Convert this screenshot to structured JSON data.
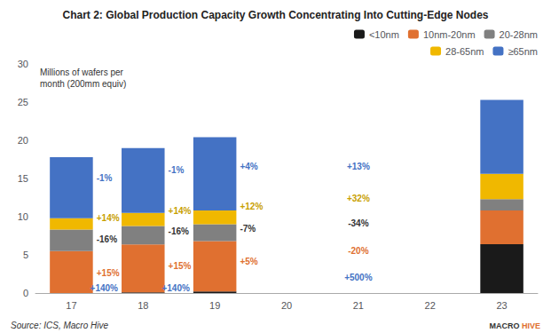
{
  "chart_data": {
    "type": "bar",
    "title": "Chart 2: Global Production Capacity Growth Concentrating Into Cutting-Edge Nodes",
    "ylabel": "Millions of wafers per\nmonth (200mm equiv)",
    "source": "Source: ICS, Macro Hive",
    "logo": [
      {
        "text": "MACRO",
        "color": "#333333"
      },
      {
        "text": "HIVE",
        "color": "#e07030"
      }
    ],
    "categories": [
      17,
      18,
      19,
      20,
      21,
      22,
      23
    ],
    "stacked": true,
    "series": [
      {
        "name": "<10nm",
        "color": "#1a1a1a",
        "values": [
          0.0,
          0.08,
          0.2,
          0.0,
          0.0,
          0.0,
          6.4
        ]
      },
      {
        "name": "10nm-20nm",
        "color": "#e07030",
        "values": [
          5.5,
          6.3,
          6.6,
          0.0,
          0.0,
          0.0,
          4.4
        ]
      },
      {
        "name": "20-28nm",
        "color": "#808080",
        "values": [
          2.8,
          2.4,
          2.2,
          0.0,
          0.0,
          0.0,
          1.5
        ]
      },
      {
        "name": "28-65nm",
        "color": "#f0b800",
        "values": [
          1.5,
          1.7,
          1.8,
          0.0,
          0.0,
          0.0,
          3.3
        ]
      },
      {
        "name": "≥65nm",
        "color": "#4472c4",
        "values": [
          8.0,
          8.5,
          9.6,
          0.0,
          0.0,
          0.0,
          9.7
        ]
      }
    ],
    "ylim": [
      0,
      30
    ],
    "yticks": [
      0,
      5,
      10,
      15,
      20,
      25,
      30
    ],
    "grid": false,
    "legend": "upper right",
    "annotations": [
      {
        "text": "+15%",
        "color": "#e07030"
      },
      {
        "text": "-16%",
        "color": "#333333"
      },
      {
        "text": "+14%",
        "color": "#c8a000"
      },
      {
        "text": "-1%",
        "color": "#4472c4"
      },
      {
        "text": "+140%",
        "color": "#4472c4"
      },
      {
        "text": "+15%",
        "color": "#e07030"
      },
      {
        "text": "-16%",
        "color": "#333333"
      },
      {
        "text": "+14%",
        "color": "#c8a000"
      },
      {
        "text": "-1%",
        "color": "#4472c4"
      },
      {
        "text": "+140%",
        "color": "#4472c4"
      },
      {
        "text": "+5%",
        "color": "#e07030"
      },
      {
        "text": "-7%",
        "color": "#333333"
      },
      {
        "text": "+12%",
        "color": "#c8a000"
      },
      {
        "text": "+4%",
        "color": "#4472c4"
      },
      {
        "text": "+500%",
        "color": "#4472c4"
      },
      {
        "text": "-20%",
        "color": "#e07030"
      },
      {
        "text": "-34%",
        "color": "#333333"
      },
      {
        "text": "+32%",
        "color": "#c8a000"
      },
      {
        "text": "+13%",
        "color": "#4472c4"
      }
    ]
  }
}
